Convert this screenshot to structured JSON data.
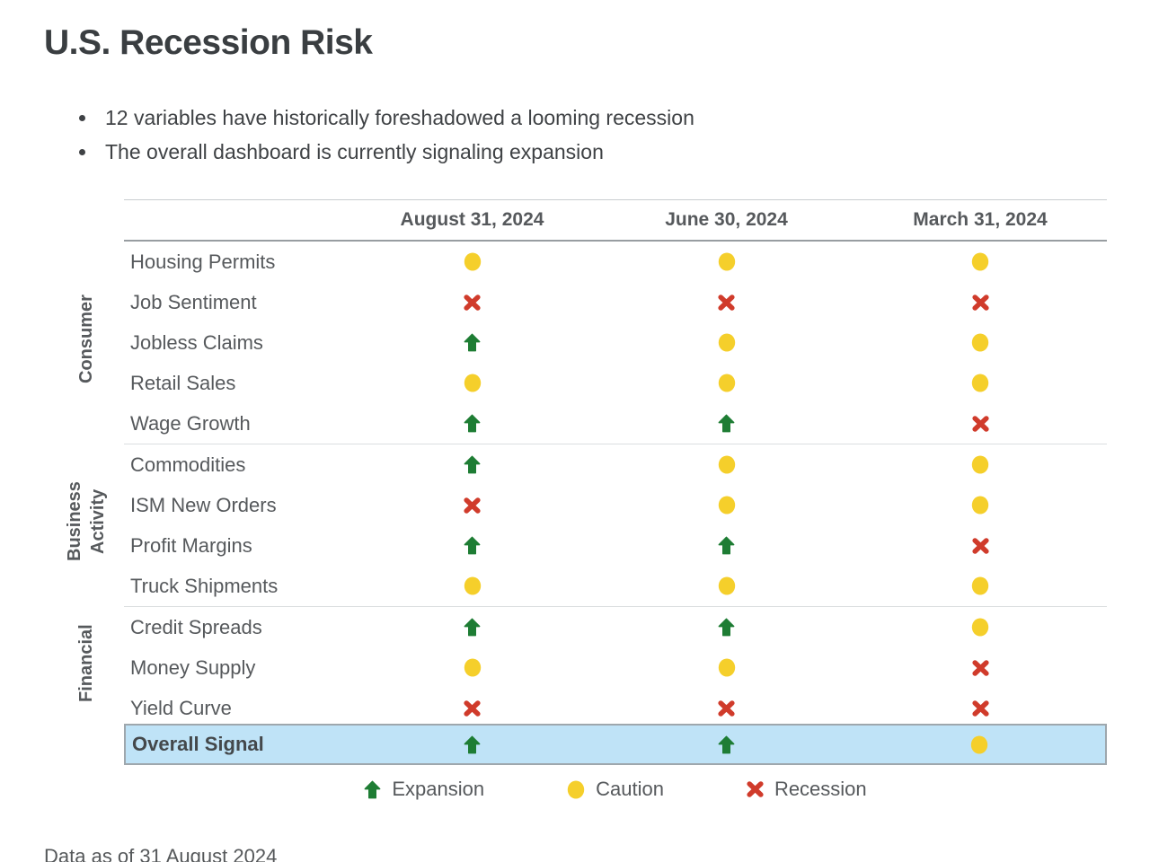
{
  "page": {
    "title": "U.S. Recession Risk",
    "bullets": [
      "12 variables have historically foreshadowed a looming recession",
      "The overall dashboard is currently signaling expansion"
    ],
    "footer": "Data as of 31 August 2024"
  },
  "colors": {
    "expansion": "#1e7d34",
    "caution": "#f5cf2b",
    "recession": "#d03b2b",
    "overall_row_bg": "#bfe3f7",
    "overall_row_border": "#9ea7ad"
  },
  "table": {
    "columns": [
      "August 31, 2024",
      "June 30, 2024",
      "March 31, 2024"
    ],
    "groups": [
      {
        "name": "Consumer",
        "rows": [
          {
            "label": "Housing Permits",
            "values": [
              "caution",
              "caution",
              "caution"
            ]
          },
          {
            "label": "Job Sentiment",
            "values": [
              "recession",
              "recession",
              "recession"
            ]
          },
          {
            "label": "Jobless Claims",
            "values": [
              "expansion",
              "caution",
              "caution"
            ]
          },
          {
            "label": "Retail Sales",
            "values": [
              "caution",
              "caution",
              "caution"
            ]
          },
          {
            "label": "Wage Growth",
            "values": [
              "expansion",
              "expansion",
              "recession"
            ]
          }
        ]
      },
      {
        "name": "Business\nActivity",
        "rows": [
          {
            "label": "Commodities",
            "values": [
              "expansion",
              "caution",
              "caution"
            ]
          },
          {
            "label": "ISM New Orders",
            "values": [
              "recession",
              "caution",
              "caution"
            ]
          },
          {
            "label": "Profit Margins",
            "values": [
              "expansion",
              "expansion",
              "recession"
            ]
          },
          {
            "label": "Truck Shipments",
            "values": [
              "caution",
              "caution",
              "caution"
            ]
          }
        ]
      },
      {
        "name": "Financial",
        "rows": [
          {
            "label": "Credit Spreads",
            "values": [
              "expansion",
              "expansion",
              "caution"
            ]
          },
          {
            "label": "Money Supply",
            "values": [
              "caution",
              "caution",
              "recession"
            ]
          },
          {
            "label": "Yield Curve",
            "values": [
              "recession",
              "recession",
              "recession"
            ]
          }
        ]
      }
    ],
    "overall": {
      "label": "Overall Signal",
      "values": [
        "expansion",
        "expansion",
        "caution"
      ]
    }
  },
  "legend": [
    {
      "status": "expansion",
      "label": "Expansion"
    },
    {
      "status": "caution",
      "label": "Caution"
    },
    {
      "status": "recession",
      "label": "Recession"
    }
  ]
}
